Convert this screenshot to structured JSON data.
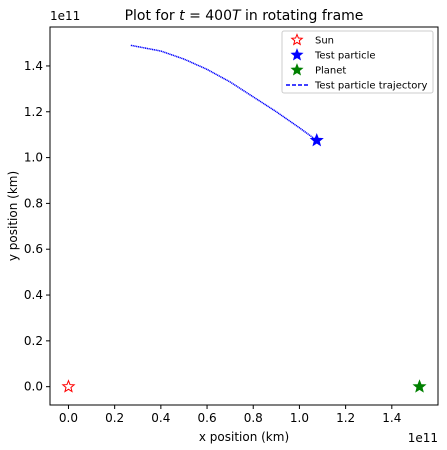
{
  "chart_data": {
    "type": "scatter",
    "title_prefix": "Plot for ",
    "title_math_t": "t",
    "title_math_rest": " = 400",
    "title_math_T": "T",
    "title_suffix": " in rotating frame",
    "xlabel": "x position (km)",
    "ylabel": "y position (km)",
    "x_offset_label": "1e11",
    "y_offset_label": "1e11",
    "xlim": [
      -0.08,
      1.6
    ],
    "ylim": [
      -0.08,
      1.57
    ],
    "xticks": [
      0.0,
      0.2,
      0.4,
      0.6,
      0.8,
      1.0,
      1.2,
      1.4
    ],
    "xtick_labels": [
      "0.0",
      "0.2",
      "0.4",
      "0.6",
      "0.8",
      "1.0",
      "1.2",
      "1.4"
    ],
    "yticks": [
      0.0,
      0.2,
      0.4,
      0.6,
      0.8,
      1.0,
      1.2,
      1.4
    ],
    "ytick_labels": [
      "0.0",
      "0.2",
      "0.4",
      "0.6",
      "0.8",
      "1.0",
      "1.2",
      "1.4"
    ],
    "grid": false,
    "legend_position": "top-right",
    "series": [
      {
        "name": "Sun",
        "marker": "star-open",
        "color": "#ff0000",
        "points": [
          [
            0.0,
            0.0
          ]
        ]
      },
      {
        "name": "Test particle",
        "marker": "star",
        "color": "#0000ff",
        "points": [
          [
            1.075,
            1.075
          ]
        ]
      },
      {
        "name": "Planet",
        "marker": "star",
        "color": "#008000",
        "points": [
          [
            1.52,
            0.0
          ]
        ]
      },
      {
        "name": "Test particle trajectory",
        "marker": "dashed-line",
        "color": "#0000ff",
        "points": [
          [
            0.27,
            1.49
          ],
          [
            0.4,
            1.465
          ],
          [
            0.5,
            1.43
          ],
          [
            0.6,
            1.385
          ],
          [
            0.7,
            1.33
          ],
          [
            0.8,
            1.265
          ],
          [
            0.9,
            1.2
          ],
          [
            1.0,
            1.13
          ],
          [
            1.075,
            1.075
          ]
        ]
      }
    ]
  }
}
